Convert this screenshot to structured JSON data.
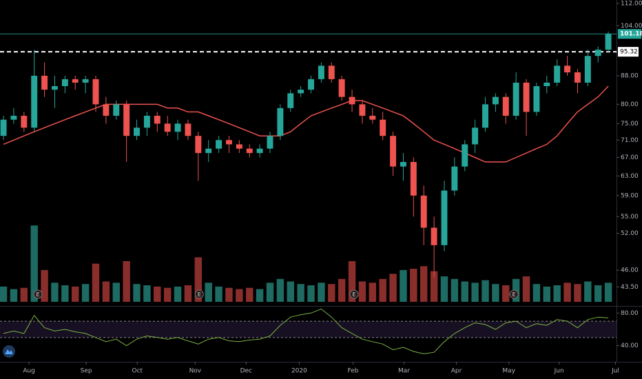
{
  "chart_data": {
    "type": "candlestick",
    "log_scale": true,
    "x": [
      0,
      1,
      2,
      3,
      4,
      5,
      6,
      7,
      8,
      9,
      10,
      11,
      12,
      13,
      14,
      15,
      16,
      17,
      18,
      19,
      20,
      21,
      22,
      23,
      24,
      25,
      26,
      27,
      28,
      29,
      30,
      31,
      32,
      33,
      34,
      35,
      36,
      37,
      38,
      39,
      40,
      41,
      42,
      43,
      44,
      45,
      46,
      47,
      48,
      49,
      50,
      51,
      52,
      53,
      54,
      55,
      56,
      57,
      58,
      59
    ],
    "xlim": [
      -0.34,
      59.8
    ],
    "xticks": [
      {
        "value": 2.49,
        "label": "Aug"
      },
      {
        "value": 8.07,
        "label": "Sep"
      },
      {
        "value": 13.05,
        "label": "Oct"
      },
      {
        "value": 18.7,
        "label": "Nov"
      },
      {
        "value": 23.67,
        "label": "Dec"
      },
      {
        "value": 28.85,
        "label": "2020"
      },
      {
        "value": 34.1,
        "label": "Feb"
      },
      {
        "value": 39.07,
        "label": "Mar"
      },
      {
        "value": 44.18,
        "label": "Apr"
      },
      {
        "value": 49.3,
        "label": "May"
      },
      {
        "value": 54.2,
        "label": "Jun"
      },
      {
        "value": 59.7,
        "label": "Jul"
      }
    ],
    "open": [
      72,
      76,
      77,
      74,
      88,
      84,
      85,
      87,
      86,
      87,
      80,
      77,
      80,
      72,
      74,
      77,
      75,
      73,
      75,
      72,
      68,
      69,
      71,
      70,
      69,
      68,
      69,
      72,
      79,
      83,
      84,
      87,
      91,
      87,
      82,
      80,
      77,
      76,
      72,
      65,
      66,
      59,
      53,
      50,
      60,
      65,
      70,
      74,
      80,
      82,
      77,
      86,
      78,
      85,
      86,
      91,
      89,
      86,
      94,
      96
    ],
    "high": [
      77,
      79,
      78,
      96,
      92,
      88,
      88,
      88,
      88,
      88,
      82,
      81,
      81,
      76,
      78,
      78,
      77,
      76,
      76,
      73,
      71,
      72,
      72,
      71,
      70,
      70,
      73,
      80,
      84,
      85,
      88,
      92,
      92,
      88,
      84,
      81,
      79,
      78,
      73,
      68,
      67,
      61,
      55,
      62,
      67,
      71,
      76,
      82,
      83,
      83,
      89,
      87,
      86,
      88,
      93,
      94,
      90,
      96,
      97,
      102
    ],
    "low": [
      71,
      75,
      73,
      73,
      82,
      79,
      83,
      84,
      83,
      78,
      75,
      76,
      66,
      71,
      72,
      73,
      72,
      71,
      71,
      62,
      66,
      68,
      68,
      68,
      67,
      67,
      68,
      71,
      78,
      82,
      83,
      86,
      86,
      81,
      78,
      75,
      75,
      71,
      63,
      62,
      55,
      50,
      45,
      49,
      59,
      64,
      68,
      73,
      78,
      75,
      76,
      72,
      77,
      83,
      85,
      88,
      83,
      85,
      92,
      95
    ],
    "close": [
      76,
      77,
      74,
      88,
      84,
      85,
      87,
      86,
      87,
      80,
      77,
      80,
      72,
      74,
      77,
      75,
      73,
      75,
      72,
      68,
      69,
      71,
      70,
      69,
      68,
      69,
      72,
      79,
      83,
      84,
      87,
      91,
      87,
      82,
      80,
      77,
      76,
      72,
      65,
      66,
      59,
      53,
      50,
      60,
      65,
      70,
      74,
      80,
      82,
      77,
      86,
      78,
      85,
      86,
      91,
      89,
      86,
      94,
      96,
      101.18
    ],
    "up_color": "#26a69a",
    "down_color": "#ef5350",
    "ylim": [
      41.2,
      113.3
    ],
    "yticks": [
      {
        "value": 112,
        "label": "112.00"
      },
      {
        "value": 104,
        "label": "104.00"
      },
      {
        "value": 88,
        "label": "88.00"
      },
      {
        "value": 80,
        "label": "80.00"
      },
      {
        "value": 75,
        "label": "75.00"
      },
      {
        "value": 71,
        "label": "71.00"
      },
      {
        "value": 67,
        "label": "67.00"
      },
      {
        "value": 63,
        "label": "63.00"
      },
      {
        "value": 59,
        "label": "59.00"
      },
      {
        "value": 55,
        "label": "55.00"
      },
      {
        "value": 52,
        "label": "52.00"
      },
      {
        "value": 46,
        "label": "46.00"
      },
      {
        "value": 43.5,
        "label": "43.50"
      }
    ],
    "last_price": 101.18,
    "last_price_color": "#26a69a",
    "alert_line": 95.32,
    "ma": {
      "color": "#ef5350",
      "values": [
        70,
        71,
        72,
        73,
        74,
        75,
        76,
        77,
        78,
        79,
        80,
        80,
        80,
        80,
        80,
        80,
        79,
        79,
        78,
        78,
        77,
        76,
        75,
        74,
        73,
        72,
        72,
        72,
        73,
        75,
        77,
        78,
        79,
        80,
        81,
        81,
        80,
        79,
        78,
        77,
        75,
        73,
        71,
        70,
        69,
        68,
        67,
        66,
        66,
        66,
        67,
        68,
        69,
        70,
        72,
        75,
        78,
        80,
        82,
        85
      ]
    },
    "volume": {
      "ylim": [
        0,
        6.5
      ],
      "up_color": "#1d6b62",
      "down_color": "#8a2e2c",
      "values": [
        1.2,
        1.0,
        1.1,
        6.0,
        2.5,
        1.5,
        1.3,
        1.2,
        1.4,
        3.0,
        1.6,
        1.5,
        3.2,
        1.4,
        1.3,
        1.2,
        1.1,
        1.2,
        1.3,
        3.5,
        1.5,
        1.2,
        1.1,
        1.0,
        1.1,
        1.0,
        1.5,
        1.8,
        1.6,
        1.4,
        1.3,
        1.5,
        1.4,
        1.8,
        3.2,
        1.6,
        1.5,
        1.8,
        2.2,
        2.5,
        2.6,
        2.8,
        2.4,
        2.0,
        1.8,
        1.6,
        1.5,
        1.7,
        1.4,
        1.3,
        1.8,
        2.0,
        1.4,
        1.2,
        1.3,
        1.5,
        1.4,
        1.6,
        1.3,
        1.5
      ]
    },
    "earnings": [
      {
        "x": 3.36,
        "label": "E"
      },
      {
        "x": 19.1,
        "label": "E"
      },
      {
        "x": 34.2,
        "label": "E"
      },
      {
        "x": 49.8,
        "label": "E"
      }
    ],
    "rsi": {
      "color": "#7cb342",
      "ylim": [
        22,
        87
      ],
      "band": [
        50,
        70
      ],
      "band_color": "#7e57c2",
      "yticks": [
        {
          "value": 80,
          "label": "80.00"
        },
        {
          "value": 40,
          "label": "40.00"
        }
      ],
      "values": [
        55,
        58,
        55,
        77,
        62,
        58,
        60,
        57,
        55,
        50,
        45,
        48,
        40,
        48,
        52,
        50,
        48,
        50,
        46,
        42,
        48,
        50,
        46,
        45,
        47,
        48,
        52,
        65,
        75,
        78,
        80,
        85,
        75,
        62,
        55,
        48,
        45,
        42,
        35,
        38,
        33,
        30,
        32,
        45,
        55,
        62,
        68,
        66,
        60,
        68,
        70,
        62,
        67,
        65,
        72,
        70,
        62,
        72,
        75,
        74
      ]
    }
  }
}
